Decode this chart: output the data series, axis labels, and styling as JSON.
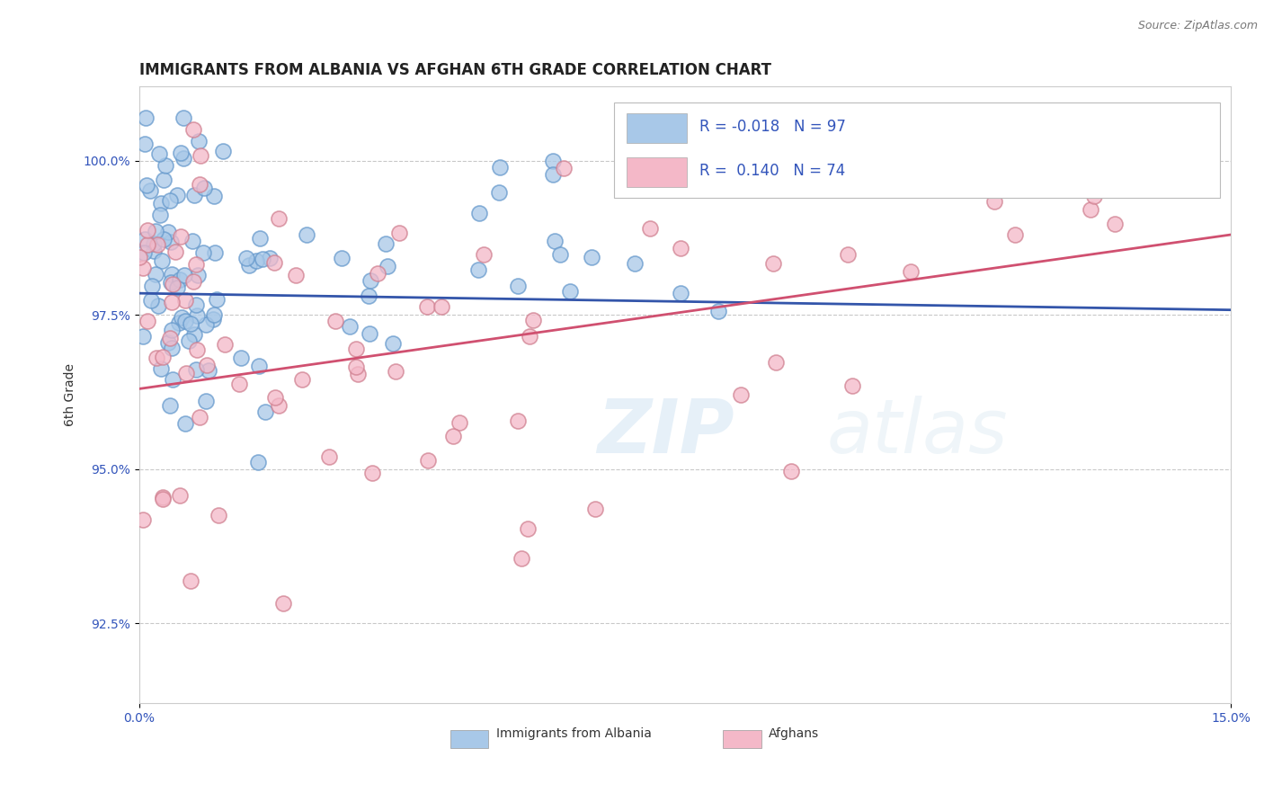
{
  "title": "IMMIGRANTS FROM ALBANIA VS AFGHAN 6TH GRADE CORRELATION CHART",
  "source": "Source: ZipAtlas.com",
  "ylabel": "6th Grade",
  "xlim": [
    0.0,
    15.0
  ],
  "ylim": [
    91.2,
    101.2
  ],
  "xticks": [
    0.0,
    15.0
  ],
  "xticklabels": [
    "0.0%",
    "15.0%"
  ],
  "yticks": [
    92.5,
    95.0,
    97.5,
    100.0
  ],
  "yticklabels": [
    "92.5%",
    "95.0%",
    "97.5%",
    "100.0%"
  ],
  "legend_labels": [
    "Immigrants from Albania",
    "Afghans"
  ],
  "series1": {
    "name": "Immigrants from Albania",
    "color": "#a8c8e8",
    "edge_color": "#6699cc",
    "R": -0.018,
    "N": 97,
    "trend_color": "#3355aa",
    "trend_y0": 97.85,
    "trend_y1": 97.58
  },
  "series2": {
    "name": "Afghans",
    "color": "#f4b8c8",
    "edge_color": "#d08090",
    "R": 0.14,
    "N": 74,
    "trend_color": "#d05070",
    "trend_y0": 96.3,
    "trend_y1": 98.8
  },
  "watermark": "ZIPatlas",
  "background_color": "#ffffff",
  "grid_color": "#bbbbbb",
  "text_color_blue": "#3355bb",
  "title_fontsize": 12,
  "axis_label_fontsize": 10,
  "tick_fontsize": 10
}
